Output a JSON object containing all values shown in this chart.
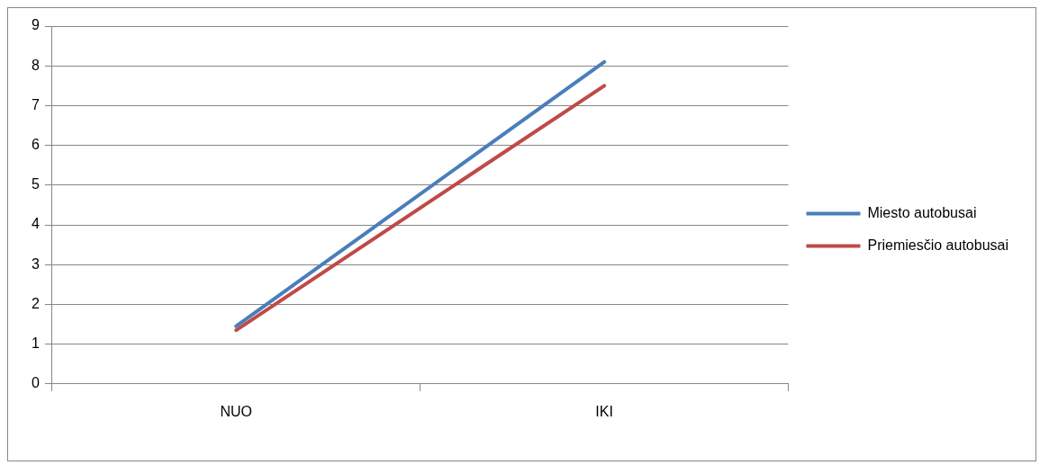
{
  "chart_data": {
    "type": "line",
    "categories": [
      "NUO",
      "IKI"
    ],
    "series": [
      {
        "name": "Miesto autobusai",
        "color": "#4a7ebb",
        "values": [
          1.45,
          8.1
        ]
      },
      {
        "name": "Priemiesčio autobusai",
        "color": "#be4b48",
        "values": [
          1.35,
          7.5
        ]
      }
    ],
    "ylim": [
      0,
      9
    ],
    "yticks": [
      0,
      1,
      2,
      3,
      4,
      5,
      6,
      7,
      8,
      9
    ],
    "grid": "y",
    "legend": "right",
    "marker": "none"
  }
}
